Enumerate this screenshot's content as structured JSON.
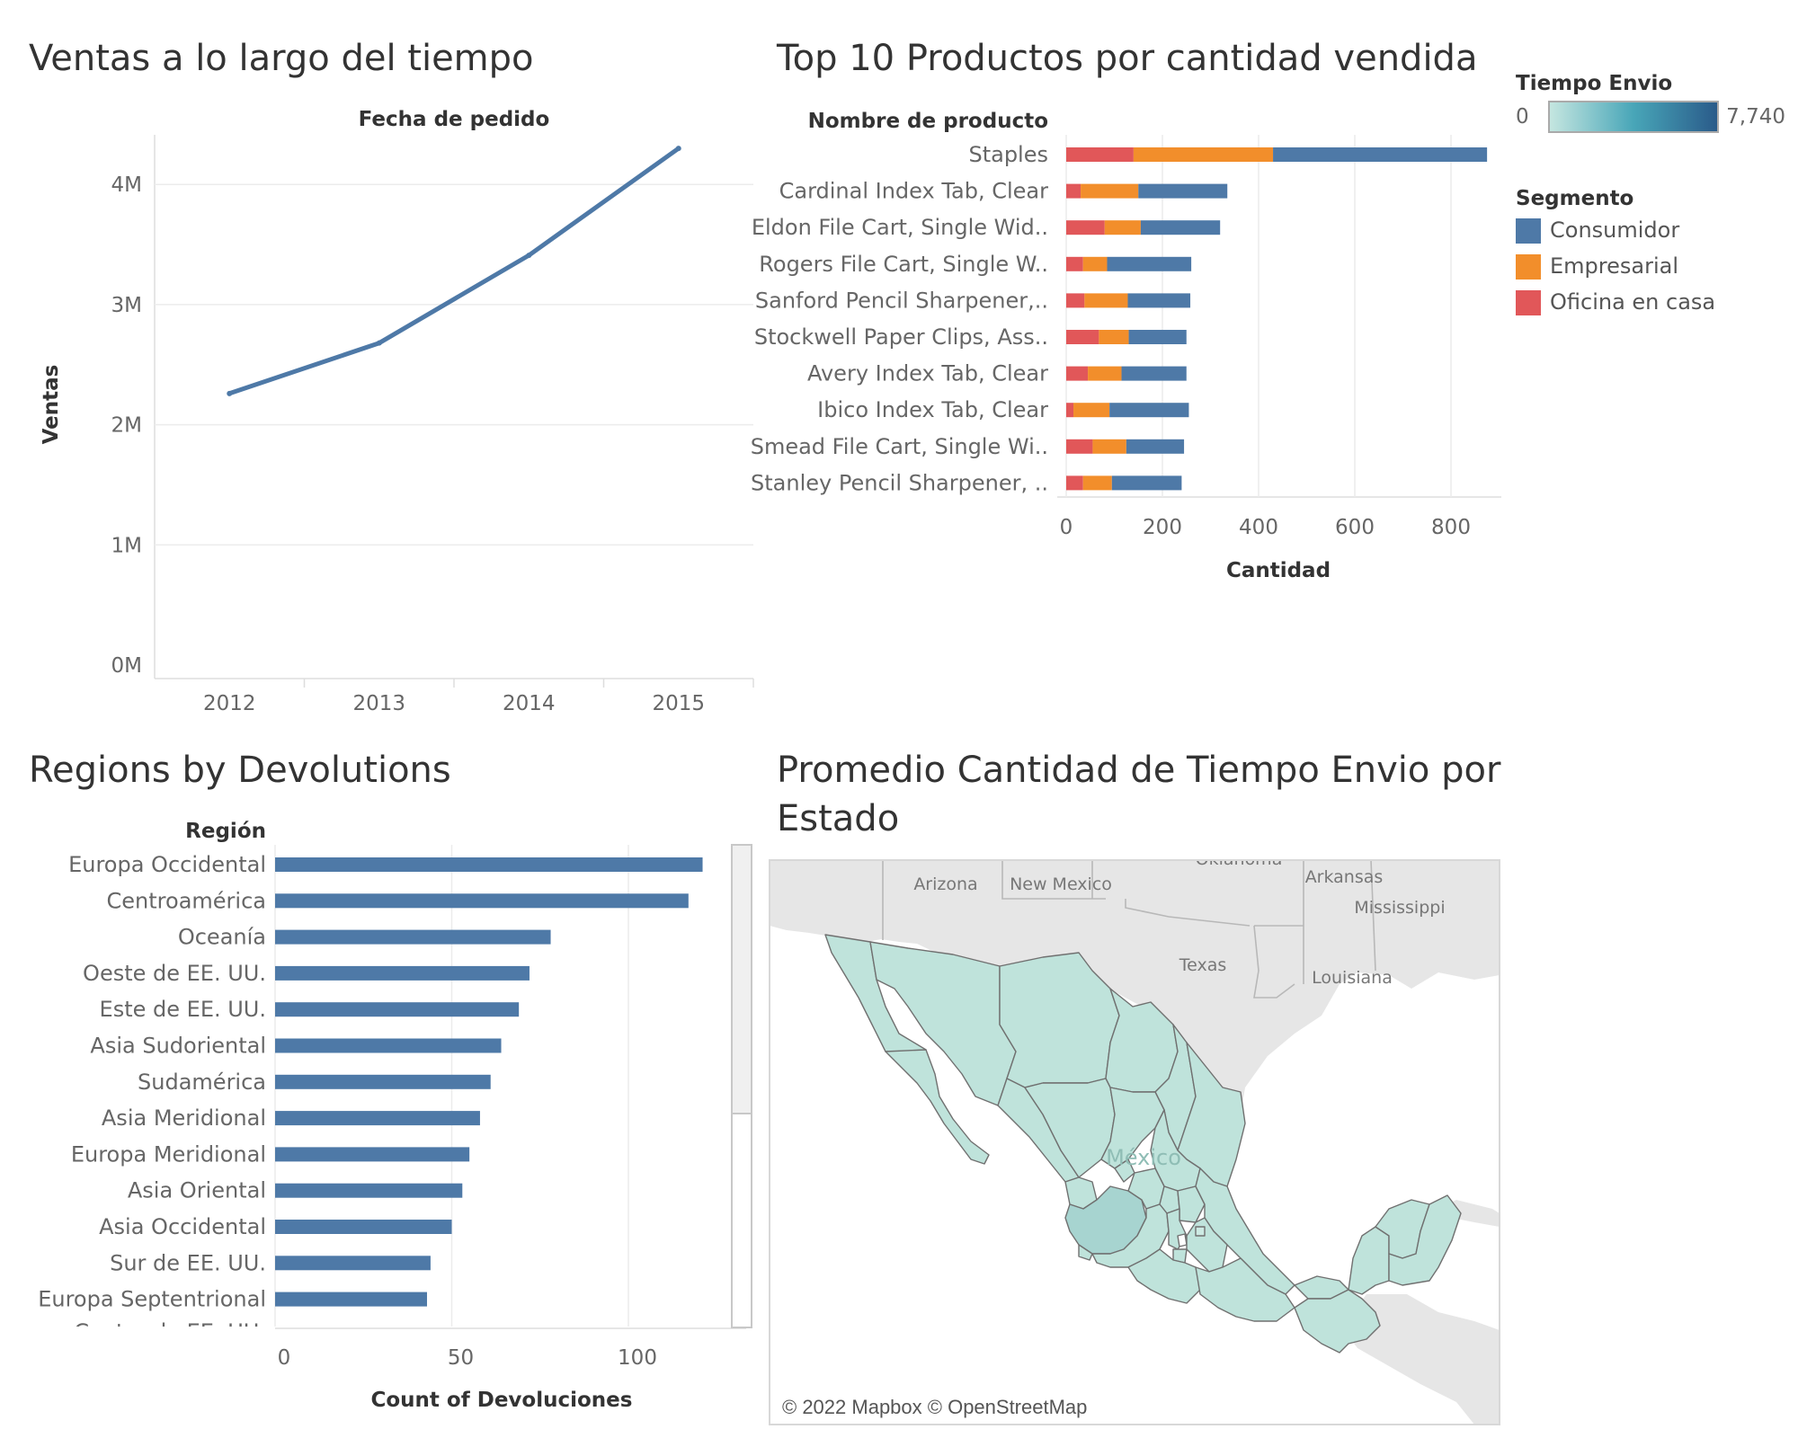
{
  "charts": {
    "ventas": {
      "title": "Ventas a lo largo del tiempo",
      "x_header": "Fecha de pedido",
      "y_label": "Ventas"
    },
    "top10": {
      "title": "Top 10 Productos por cantidad vendida",
      "y_header": "Nombre de producto",
      "x_label": "Cantidad"
    },
    "regions": {
      "title": "Regions by Devolutions",
      "y_header": "Región",
      "x_label": "Count of Devoluciones",
      "partial_label": "Centro de EE. UU."
    },
    "map": {
      "title": "Promedio Cantidad de Tiempo Envio por Estado",
      "attribution": "© 2022 Mapbox © OpenStreetMap",
      "labels": {
        "arizona": "Arizona",
        "new_mexico": "New Mexico",
        "oklahoma": "Oklahoma",
        "arkansas": "Arkansas",
        "mississippi": "Mississippi",
        "texas": "Texas",
        "louisiana": "Louisiana",
        "mexico": "México"
      }
    }
  },
  "legends": {
    "tiempo": {
      "title": "Tiempo Envio",
      "min": "0",
      "max": "7,740",
      "color_low": "#c5e6e0",
      "color_high": "#2a5b8a"
    },
    "segmento": {
      "title": "Segmento",
      "items": [
        {
          "label": "Consumidor",
          "color": "#4e79a7"
        },
        {
          "label": "Empresarial",
          "color": "#f28e2b"
        },
        {
          "label": "Oficina en casa",
          "color": "#e15759"
        }
      ]
    }
  },
  "chart_data": [
    {
      "type": "line",
      "title": "Ventas a lo largo del tiempo",
      "xlabel": "Fecha de pedido",
      "ylabel": "Ventas",
      "x": [
        "2012",
        "2013",
        "2014",
        "2015"
      ],
      "values": [
        2.26,
        2.68,
        3.41,
        4.3
      ],
      "unit": "M",
      "ylim": [
        0,
        4.5
      ],
      "yticks": [
        "0M",
        "1M",
        "2M",
        "3M",
        "4M"
      ],
      "color": "#4e79a7"
    },
    {
      "type": "bar",
      "orientation": "horizontal",
      "stacked": true,
      "title": "Top 10 Productos por cantidad vendida",
      "xlabel": "Cantidad",
      "ylabel": "Nombre de producto",
      "categories": [
        "Staples",
        "Cardinal Index Tab, Clear",
        "Eldon File Cart, Single Wid..",
        "Rogers File Cart, Single W..",
        "Sanford Pencil Sharpener,..",
        "Stockwell Paper Clips, Ass..",
        "Avery Index Tab, Clear",
        "Ibico Index Tab, Clear",
        "Smead File Cart, Single Wi..",
        "Stanley Pencil Sharpener, .."
      ],
      "series": [
        {
          "name": "Oficina en casa",
          "color": "#e15759",
          "values": [
            140,
            30,
            80,
            35,
            38,
            68,
            45,
            15,
            55,
            35
          ]
        },
        {
          "name": "Empresarial",
          "color": "#f28e2b",
          "values": [
            290,
            120,
            75,
            50,
            90,
            62,
            70,
            75,
            70,
            60
          ]
        },
        {
          "name": "Consumidor",
          "color": "#4e79a7",
          "values": [
            445,
            185,
            165,
            175,
            130,
            120,
            135,
            165,
            120,
            145
          ]
        }
      ],
      "xticks": [
        "0",
        "200",
        "400",
        "600",
        "800"
      ],
      "xlim": [
        0,
        900
      ]
    },
    {
      "type": "bar",
      "orientation": "horizontal",
      "title": "Regions by Devolutions",
      "xlabel": "Count of Devoluciones",
      "ylabel": "Región",
      "categories": [
        "Europa Occidental",
        "Centroamérica",
        "Oceanía",
        "Oeste de EE. UU.",
        "Este de EE. UU.",
        "Asia Sudoriental",
        "Sudamérica",
        "Asia Meridional",
        "Europa Meridional",
        "Asia Oriental",
        "Asia Occidental",
        "Sur de EE. UU.",
        "Europa Septentrional"
      ],
      "values": [
        121,
        117,
        78,
        72,
        69,
        64,
        61,
        58,
        55,
        53,
        50,
        44,
        43
      ],
      "xticks": [
        "0",
        "50",
        "100"
      ],
      "xlim": [
        0,
        135
      ],
      "color": "#4e79a7"
    }
  ]
}
